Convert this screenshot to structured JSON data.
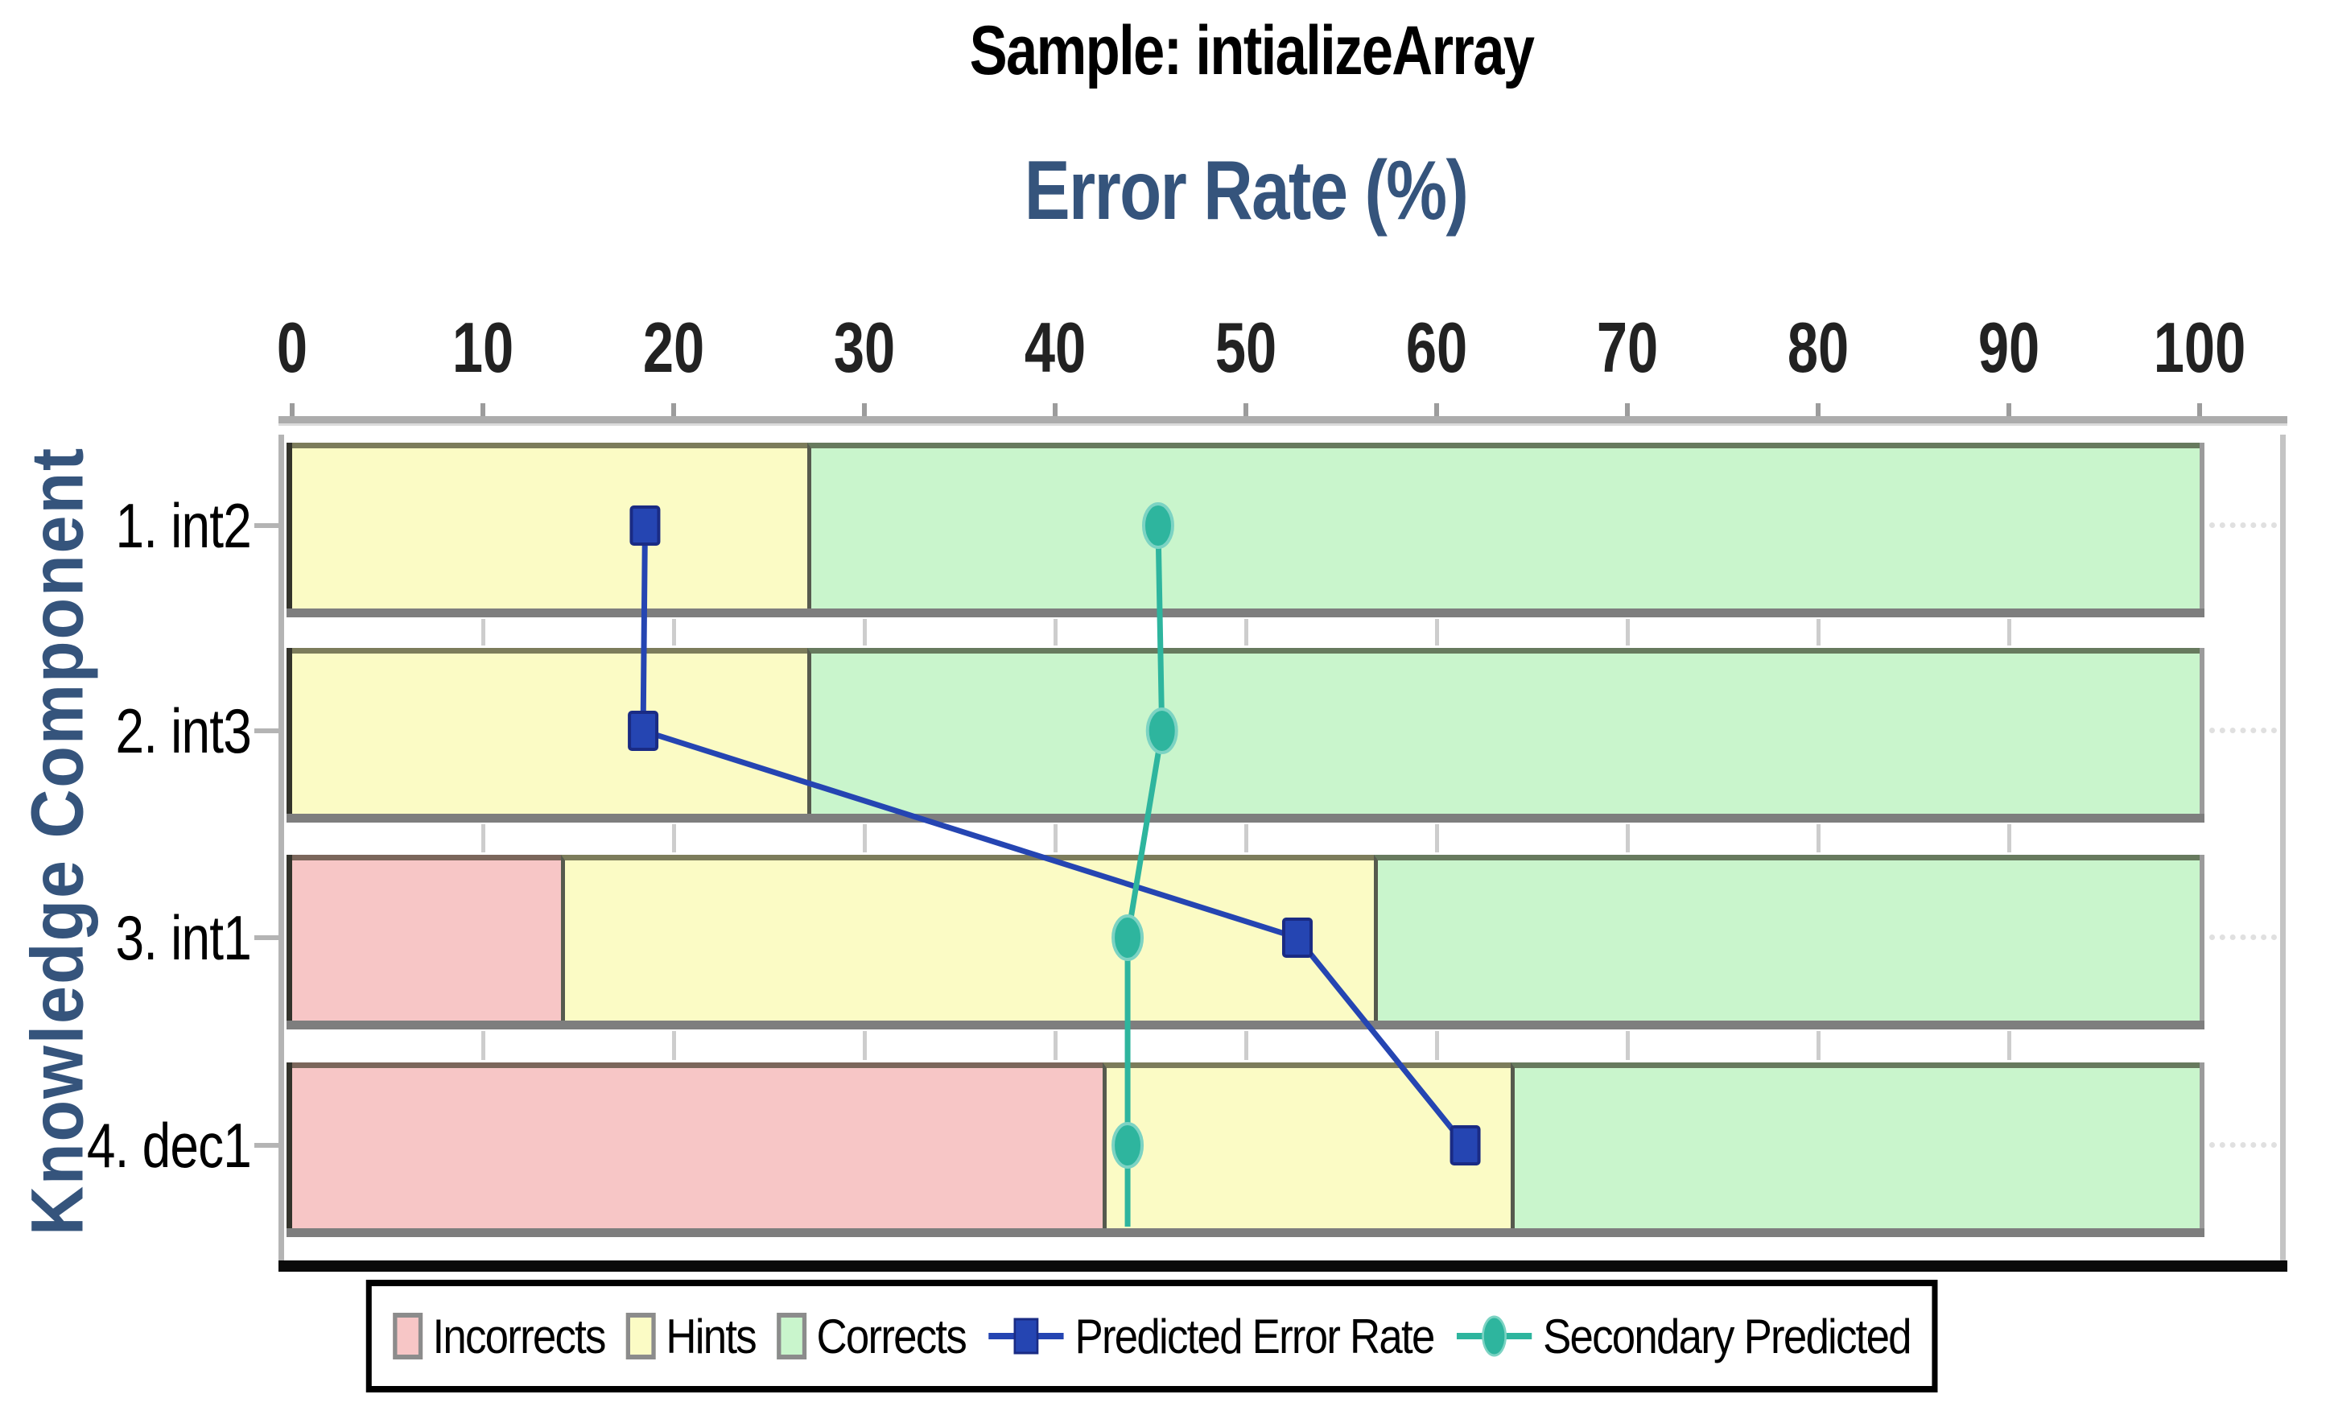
{
  "chart_data": {
    "type": "bar",
    "orientation": "horizontal-stacked-with-lines",
    "sample_title": "Sample: intializeArray",
    "title": "Error Rate (%)",
    "xlabel": "Error Rate (%)",
    "ylabel": "Knowledge Component",
    "categories": [
      "1. int2",
      "2. int3",
      "3. int1",
      "4. dec1"
    ],
    "stack_series": [
      {
        "name": "Incorrects",
        "color": "#F7C6C6",
        "values": [
          0,
          0,
          14.1,
          42.5
        ]
      },
      {
        "name": "Hints",
        "color": "#FBFBC5",
        "values": [
          27,
          27,
          42.6,
          21.4
        ]
      },
      {
        "name": "Corrects",
        "color": "#C9F5CC",
        "values": [
          73,
          73,
          43.3,
          36.1
        ]
      }
    ],
    "line_series": [
      {
        "name": "Predicted Error Rate",
        "color": "#2545B2",
        "edge": "#1A2B84",
        "marker": "square",
        "values": [
          18.5,
          18.4,
          52.7,
          61.5
        ],
        "tail_to_bottom": false
      },
      {
        "name": "Secondary Predicted",
        "color": "#2EB59E",
        "edge": "#7CD3C3",
        "marker": "circle",
        "values": [
          45.4,
          45.6,
          43.8,
          43.8
        ],
        "tail_to_bottom": true
      }
    ],
    "x_ticks": [
      0,
      10,
      20,
      30,
      40,
      50,
      60,
      70,
      80,
      90,
      100
    ],
    "xlim": [
      0,
      100
    ],
    "legend_position": "bottom",
    "legend_border": "#000000",
    "grid": "tick-stubs-between-bars",
    "colors": {
      "axis_line": "#ACACAC",
      "axis_tick": "#9C9C9C",
      "bar_shadow": "#7E7E7E",
      "bar_left_border": "#33332B",
      "bar_right_cap": "#9B9B9B",
      "segment_divider": "#565A4E",
      "plot_bottom_border": "#0A0A0A",
      "title_blue": "#35547C"
    }
  }
}
